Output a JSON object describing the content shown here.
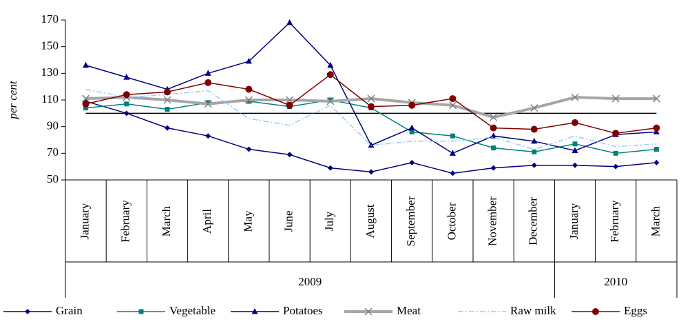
{
  "chart_data": {
    "type": "line",
    "y_label": "per cent",
    "categories": [
      "January",
      "February",
      "March",
      "April",
      "May",
      "June",
      "July",
      "August",
      "September",
      "October",
      "November",
      "December",
      "January",
      "February",
      "March"
    ],
    "x_groups": [
      {
        "label": "2009",
        "count": 12
      },
      {
        "label": "2010",
        "count": 3
      }
    ],
    "ylim": [
      50,
      170
    ],
    "yticks": [
      50,
      70,
      90,
      110,
      130,
      150,
      170
    ],
    "reference_line": 100,
    "legend": "bottom",
    "series": [
      {
        "name": "Grain",
        "color": "#000080",
        "marker": "diamond",
        "values": [
          109,
          100,
          89,
          83,
          73,
          69,
          59,
          56,
          63,
          55,
          59,
          61,
          61,
          60,
          63
        ]
      },
      {
        "name": "Vegetable",
        "color": "#008080",
        "marker": "square",
        "values": [
          104,
          107,
          103,
          108,
          109,
          105,
          110,
          104,
          86,
          83,
          74,
          71,
          77,
          70,
          73
        ]
      },
      {
        "name": "Potatoes",
        "color": "#000080",
        "marker": "triangle",
        "values": [
          136,
          127,
          118,
          130,
          139,
          168,
          136,
          76,
          89,
          70,
          83,
          79,
          72,
          84,
          86
        ]
      },
      {
        "name": "Meat",
        "color": "#a6a6a6",
        "marker": "cross",
        "values": [
          111,
          112,
          110,
          107,
          110,
          110,
          109,
          111,
          108,
          106,
          97,
          104,
          112,
          111,
          111
        ]
      },
      {
        "name": "Raw milk",
        "color": "#99ccff",
        "marker": "none",
        "dash": "8 3 2 3",
        "values": [
          118,
          112,
          114,
          117,
          96,
          91,
          106,
          76,
          79,
          79,
          82,
          73,
          83,
          75,
          77
        ]
      },
      {
        "name": "Eggs",
        "color": "#800000",
        "marker": "circle",
        "values": [
          107,
          114,
          116,
          123,
          118,
          106,
          129,
          105,
          106,
          111,
          89,
          88,
          93,
          85,
          89
        ]
      }
    ]
  }
}
